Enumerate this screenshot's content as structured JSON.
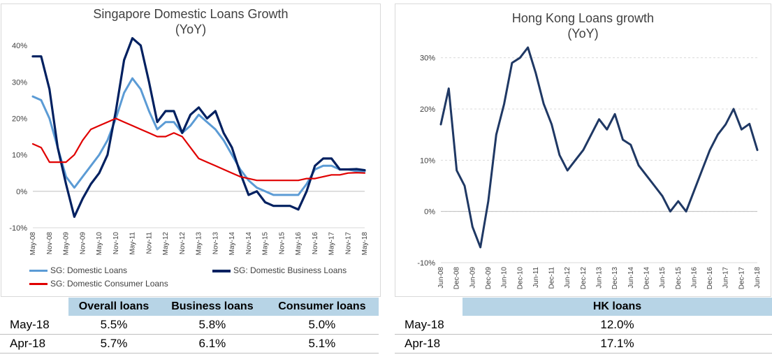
{
  "chart_data": [
    {
      "type": "line",
      "title": "Singapore Domestic Loans Growth",
      "subtitle": "(YoY)",
      "x": [
        "May-08",
        "Aug-08",
        "Nov-08",
        "Feb-09",
        "May-09",
        "Aug-09",
        "Nov-09",
        "Feb-10",
        "May-10",
        "Aug-10",
        "Nov-10",
        "Feb-11",
        "May-11",
        "Aug-11",
        "Nov-11",
        "Feb-12",
        "May-12",
        "Aug-12",
        "Nov-12",
        "Feb-13",
        "May-13",
        "Aug-13",
        "Nov-13",
        "Feb-14",
        "May-14",
        "Aug-14",
        "Nov-14",
        "Feb-15",
        "May-15",
        "Aug-15",
        "Nov-15",
        "Feb-16",
        "May-16",
        "Aug-16",
        "Nov-16",
        "Feb-17",
        "May-17",
        "Aug-17",
        "Nov-17",
        "Feb-18",
        "May-18"
      ],
      "x_tick_labels": [
        "May-08",
        "Nov-08",
        "May-09",
        "Nov-09",
        "May-10",
        "Nov-10",
        "May-11",
        "Nov-11",
        "May-12",
        "Nov-12",
        "May-13",
        "Nov-13",
        "May-14",
        "Nov-14",
        "May-15",
        "Nov-15",
        "May-16",
        "Nov-16",
        "May-17",
        "Nov-17",
        "May-18"
      ],
      "y_tick_labels": [
        "-10%",
        "0%",
        "10%",
        "20%",
        "30%",
        "40%"
      ],
      "ylim": [
        -10,
        45
      ],
      "y_unit": "%",
      "grid": false,
      "legend": "bottom",
      "series": [
        {
          "name": "SG: Domestic Loans",
          "color": "#5b9bd5",
          "values": [
            26,
            25,
            20,
            12,
            4,
            1,
            4,
            7,
            10,
            14,
            20,
            27,
            31,
            28,
            22,
            17,
            19,
            19,
            16,
            18,
            21,
            19,
            17,
            14,
            10,
            6,
            3,
            1,
            0,
            -1,
            -1,
            -1,
            -1,
            2,
            6,
            7,
            7,
            6,
            6,
            5.5,
            5.5
          ]
        },
        {
          "name": "SG: Domestic Business Loans",
          "color": "#002060",
          "values": [
            37,
            37,
            28,
            12,
            2,
            -7,
            -2,
            2,
            5,
            10,
            22,
            36,
            42,
            40,
            30,
            19,
            22,
            22,
            16,
            21,
            23,
            20,
            22,
            16,
            12,
            5,
            -1,
            0,
            -3,
            -4,
            -4,
            -4,
            -5,
            0,
            7,
            9,
            9,
            6,
            6,
            6.1,
            5.8
          ]
        },
        {
          "name": "SG: Domestic Consumer Loans",
          "color": "#e00000",
          "values": [
            13,
            12,
            8,
            8,
            8,
            10,
            14,
            17,
            18,
            19,
            20,
            19,
            18,
            17,
            16,
            15,
            15,
            16,
            15,
            12,
            9,
            8,
            7,
            6,
            5,
            4,
            3.5,
            3,
            3,
            3,
            3,
            3,
            3,
            3.5,
            3.5,
            4,
            4.5,
            4.5,
            5,
            5.1,
            5.0
          ]
        }
      ]
    },
    {
      "type": "line",
      "title": "Hong Kong Loans growth",
      "subtitle": "(YoY)",
      "x": [
        "Jun-08",
        "Sep-08",
        "Dec-08",
        "Mar-09",
        "Jun-09",
        "Sep-09",
        "Dec-09",
        "Mar-10",
        "Jun-10",
        "Sep-10",
        "Dec-10",
        "Mar-11",
        "Jun-11",
        "Sep-11",
        "Dec-11",
        "Mar-12",
        "Jun-12",
        "Sep-12",
        "Dec-12",
        "Mar-13",
        "Jun-13",
        "Sep-13",
        "Dec-13",
        "Mar-14",
        "Jun-14",
        "Sep-14",
        "Dec-14",
        "Mar-15",
        "Jun-15",
        "Sep-15",
        "Dec-15",
        "Mar-16",
        "Jun-16",
        "Sep-16",
        "Dec-16",
        "Mar-17",
        "Jun-17",
        "Sep-17",
        "Dec-17",
        "Mar-18",
        "Jun-18"
      ],
      "x_tick_labels": [
        "Jun-08",
        "Dec-08",
        "Jun-09",
        "Dec-09",
        "Jun-10",
        "Dec-10",
        "Jun-11",
        "Dec-11",
        "Jun-12",
        "Dec-12",
        "Jun-13",
        "Dec-13",
        "Jun-14",
        "Dec-14",
        "Jun-15",
        "Dec-15",
        "Jun-16",
        "Dec-16",
        "Jun-17",
        "Dec-17",
        "Jun-18"
      ],
      "y_tick_labels": [
        "-10%",
        "0%",
        "10%",
        "20%",
        "30%"
      ],
      "ylim": [
        -10,
        32
      ],
      "y_unit": "%",
      "grid": true,
      "series": [
        {
          "name": "HK loans",
          "color": "#1f3864",
          "values": [
            17,
            24,
            8,
            5,
            -3,
            -7,
            2,
            15,
            21,
            29,
            30,
            32,
            27,
            21,
            17,
            11,
            8,
            10,
            12,
            15,
            18,
            16,
            19,
            14,
            13,
            9,
            7,
            5,
            3,
            0,
            2,
            0,
            4,
            8,
            12,
            15,
            17,
            20,
            16,
            17.1,
            12.0
          ]
        }
      ]
    }
  ],
  "sg_table": {
    "headers": [
      "Overall loans",
      "Business loans",
      "Consumer loans"
    ],
    "rows": [
      {
        "label": "May-18",
        "values": [
          "5.5%",
          "5.8%",
          "5.0%"
        ]
      },
      {
        "label": "Apr-18",
        "values": [
          "5.7%",
          "6.1%",
          "5.1%"
        ]
      }
    ]
  },
  "hk_table": {
    "header": "HK loans",
    "rows": [
      {
        "label": "May-18",
        "value": "12.0%"
      },
      {
        "label": "Apr-18",
        "value": "17.1%"
      }
    ]
  }
}
